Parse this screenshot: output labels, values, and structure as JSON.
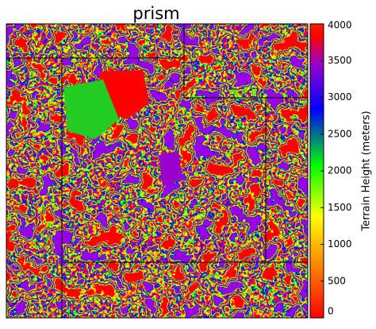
{
  "title": "prism",
  "colorbar": {
    "label": "Terrain Height (meters)",
    "lim": [
      0,
      4000
    ],
    "ticks": [
      0,
      500,
      1000,
      1500,
      2000,
      2500,
      3000,
      3500,
      4000
    ]
  }
}
